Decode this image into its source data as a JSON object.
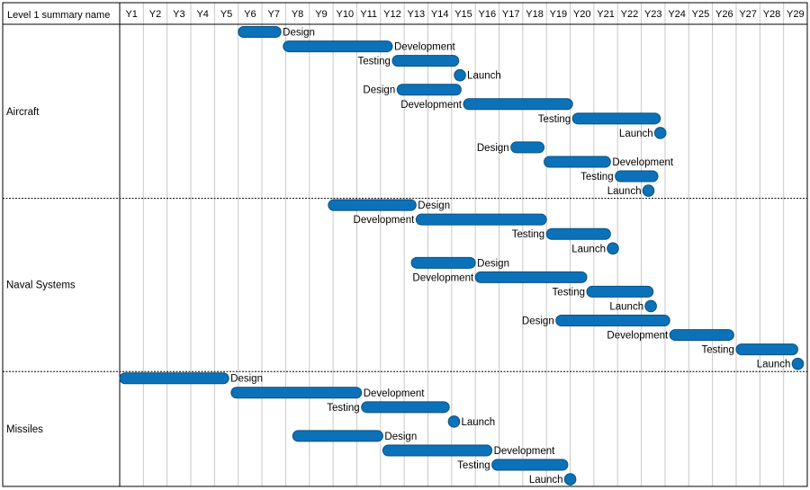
{
  "header": {
    "corner_label": "Level 1 summary name"
  },
  "colors": {
    "bar_fill": "#0b72b9",
    "bar_stroke": "#0a4f80",
    "grid": "#c8c8c8",
    "border": "#000000",
    "separator": "#000000"
  },
  "chart_data": {
    "type": "gantt",
    "title": "",
    "columns": [
      "Y1",
      "Y2",
      "Y3",
      "Y4",
      "Y5",
      "Y6",
      "Y7",
      "Y8",
      "Y9",
      "Y10",
      "Y11",
      "Y12",
      "Y13",
      "Y14",
      "Y15",
      "Y16",
      "Y17",
      "Y18",
      "Y19",
      "Y20",
      "Y21",
      "Y22",
      "Y23",
      "Y24",
      "Y25",
      "Y26",
      "Y27",
      "Y28",
      "Y29"
    ],
    "groups": [
      {
        "name": "Aircraft",
        "tasks": [
          {
            "label": "Design",
            "start": 5.0,
            "end": 6.8,
            "label_side": "right"
          },
          {
            "label": "Development",
            "start": 6.9,
            "end": 11.5,
            "label_side": "right"
          },
          {
            "label": "Testing",
            "start": 11.5,
            "end": 14.3,
            "label_side": "left"
          },
          {
            "label": "Launch",
            "milestone": 14.35,
            "label_side": "right"
          },
          {
            "label": "Design",
            "start": 11.7,
            "end": 14.4,
            "label_side": "left"
          },
          {
            "label": "Development",
            "start": 14.5,
            "end": 19.1,
            "label_side": "left"
          },
          {
            "label": "Testing",
            "start": 19.1,
            "end": 22.8,
            "label_side": "left"
          },
          {
            "label": "Launch",
            "milestone": 22.8,
            "label_side": "left"
          },
          {
            "label": "Design",
            "start": 16.5,
            "end": 17.9,
            "label_side": "left"
          },
          {
            "label": "Development",
            "start": 17.9,
            "end": 20.7,
            "label_side": "right"
          },
          {
            "label": "Testing",
            "start": 20.9,
            "end": 22.7,
            "label_side": "left"
          },
          {
            "label": "Launch",
            "milestone": 22.3,
            "label_side": "left"
          }
        ]
      },
      {
        "name": "Naval Systems",
        "tasks": [
          {
            "label": "Design",
            "start": 8.8,
            "end": 12.5,
            "label_side": "right"
          },
          {
            "label": "Development",
            "start": 12.5,
            "end": 18.0,
            "label_side": "left"
          },
          {
            "label": "Testing",
            "start": 18.0,
            "end": 20.7,
            "label_side": "left"
          },
          {
            "label": "Launch",
            "milestone": 20.8,
            "label_side": "left"
          },
          {
            "label": "Design",
            "start": 12.3,
            "end": 15.0,
            "label_side": "right"
          },
          {
            "label": "Development",
            "start": 15.0,
            "end": 19.7,
            "label_side": "left"
          },
          {
            "label": "Testing",
            "start": 19.7,
            "end": 22.5,
            "label_side": "left"
          },
          {
            "label": "Launch",
            "milestone": 22.4,
            "label_side": "left"
          },
          {
            "label": "Design",
            "start": 18.4,
            "end": 23.2,
            "label_side": "left"
          },
          {
            "label": "Development",
            "start": 23.2,
            "end": 25.9,
            "label_side": "left"
          },
          {
            "label": "Testing",
            "start": 26.0,
            "end": 28.6,
            "label_side": "left"
          },
          {
            "label": "Launch",
            "milestone": 28.6,
            "label_side": "left"
          }
        ]
      },
      {
        "name": "Missiles",
        "tasks": [
          {
            "label": "Design",
            "start": 0.0,
            "end": 4.6,
            "label_side": "right"
          },
          {
            "label": "Development",
            "start": 4.7,
            "end": 10.2,
            "label_side": "right"
          },
          {
            "label": "Testing",
            "start": 10.2,
            "end": 13.9,
            "label_side": "left"
          },
          {
            "label": "Launch",
            "milestone": 14.1,
            "label_side": "right"
          },
          {
            "label": "Design",
            "start": 7.3,
            "end": 11.1,
            "label_side": "right"
          },
          {
            "label": "Development",
            "start": 11.1,
            "end": 15.7,
            "label_side": "right"
          },
          {
            "label": "Testing",
            "start": 15.7,
            "end": 18.9,
            "label_side": "left"
          },
          {
            "label": "Launch",
            "milestone": 19.0,
            "label_side": "left"
          }
        ]
      }
    ]
  }
}
